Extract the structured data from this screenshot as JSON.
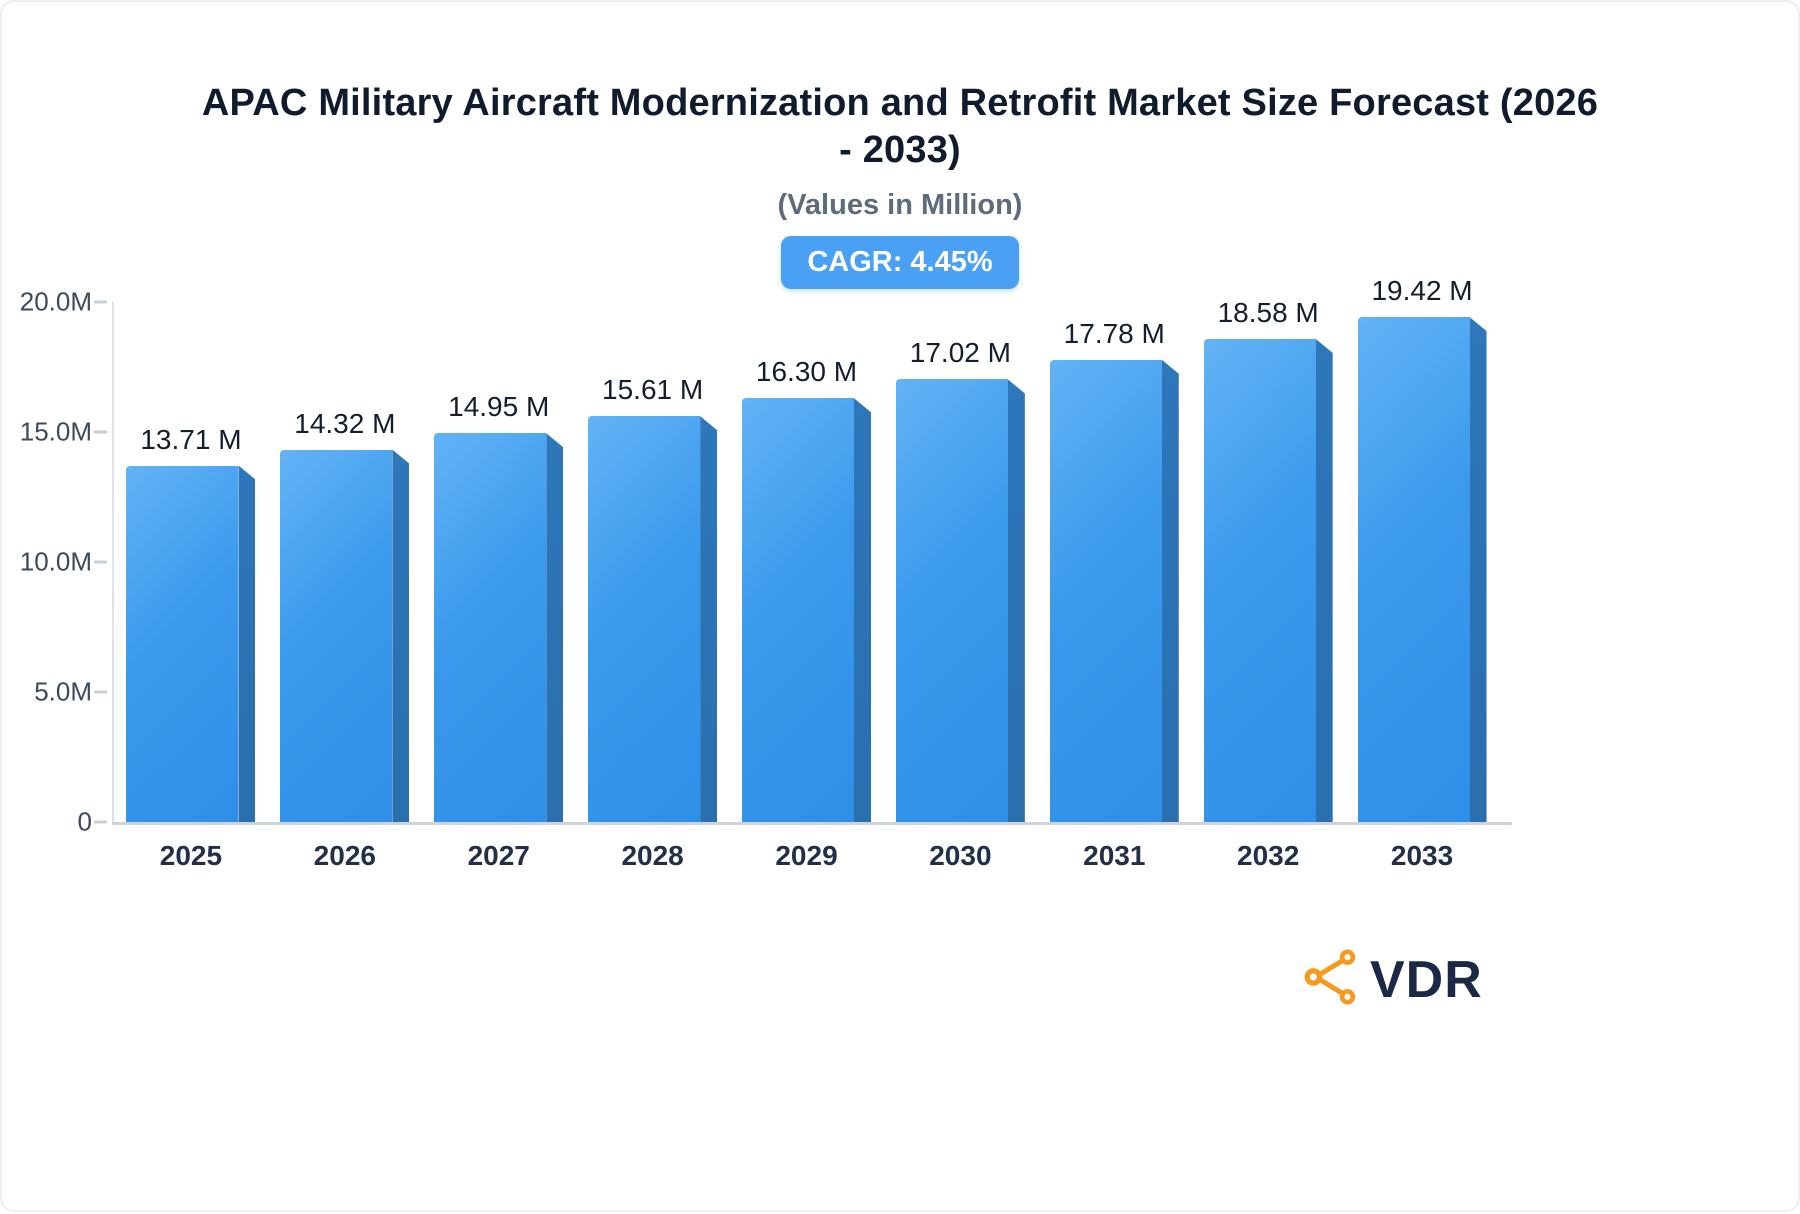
{
  "header": {
    "title": "APAC Military Aircraft Modernization and Retrofit Market Size Forecast (2026 - 2033)",
    "subtitle": "(Values in Million)",
    "cagr_label": "CAGR: 4.45%"
  },
  "logo": {
    "text": "VDR",
    "icon": "share-network-icon",
    "icon_color": "#f6991f",
    "text_color": "#1c2946"
  },
  "chart_data": {
    "type": "bar",
    "title": "APAC Military Aircraft Modernization and Retrofit Market Size Forecast (2026 - 2033)",
    "subtitle": "(Values in Million)",
    "categories": [
      "2025",
      "2026",
      "2027",
      "2028",
      "2029",
      "2030",
      "2031",
      "2032",
      "2033"
    ],
    "values": [
      13.71,
      14.32,
      14.95,
      15.61,
      16.3,
      17.02,
      17.78,
      18.58,
      19.42
    ],
    "value_labels": [
      "13.71 M",
      "14.32 M",
      "14.95 M",
      "15.61 M",
      "16.30 M",
      "17.02 M",
      "17.78 M",
      "18.58 M",
      "19.42 M"
    ],
    "xlabel": "",
    "ylabel": "",
    "ylim": [
      0,
      20
    ],
    "yticks": [
      {
        "value": 0,
        "label": "0"
      },
      {
        "value": 5,
        "label": "5.0M"
      },
      {
        "value": 10,
        "label": "10.0M"
      },
      {
        "value": 15,
        "label": "15.0M"
      },
      {
        "value": 20,
        "label": "20.0M"
      }
    ],
    "grid": false,
    "legend": false,
    "bar_color": "#3b9aec",
    "bar_side_color": "#2a6fae",
    "cagr": "4.45%"
  }
}
